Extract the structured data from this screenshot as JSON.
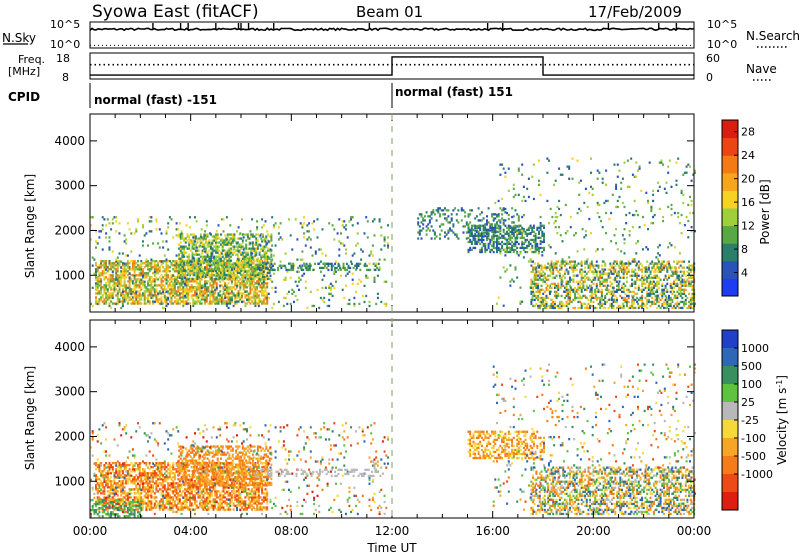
{
  "header": {
    "station": "Syowa East (fitACF)",
    "beam": "Beam 01",
    "date": "17/Feb/2009"
  },
  "noise_panel": {
    "left_label": "N.Sky",
    "right_label": "N.Search",
    "left_ticks": [
      "10^5",
      "10^0"
    ],
    "right_ticks": [
      "10^5",
      "10^0"
    ],
    "sky_level": 0.72,
    "search_level": 0.1,
    "spike_times_h": [
      2.5,
      3.6,
      3.9,
      5.0,
      5.9,
      6.0,
      6.3,
      7.3,
      11.1,
      15.8,
      16.4,
      20.6,
      22.6,
      23.3
    ]
  },
  "freq_panel": {
    "left_label": "Freq.",
    "left_unit": "[MHz]",
    "right_label": "Nave",
    "left_ticks": [
      "18",
      "8"
    ],
    "right_ticks": [
      "60",
      "0"
    ],
    "steps": [
      {
        "from_h": 0,
        "to_h": 12,
        "level": 0.15
      },
      {
        "from_h": 12,
        "to_h": 18,
        "level": 0.85
      },
      {
        "from_h": 18,
        "to_h": 24,
        "level": 0.15
      }
    ],
    "dots_level": 0.55
  },
  "cpid": {
    "label": "CPID",
    "segments": [
      {
        "text": "normal (fast) -151",
        "from_h": 0
      },
      {
        "text": "normal (fast) 151",
        "from_h": 12
      }
    ]
  },
  "chart_data": [
    {
      "type": "heatmap",
      "name": "power",
      "ylabel": "Slant Range [km]",
      "xlim": [
        0,
        24
      ],
      "ylim": [
        180,
        4600
      ],
      "yticks": [
        1000,
        2000,
        3000,
        4000
      ],
      "colorbar": {
        "label": "Power [dB]",
        "ticks": [
          4,
          8,
          12,
          16,
          20,
          24,
          28
        ],
        "range": [
          0,
          30
        ],
        "colors": [
          "#1e3cf0",
          "#2a52b8",
          "#2b7f6a",
          "#58a845",
          "#a0cf3c",
          "#f6d222",
          "#f7a51e",
          "#f47a16",
          "#ea4512",
          "#d81e10"
        ]
      },
      "echo_regions": [
        {
          "h0": 0.2,
          "h1": 7.0,
          "r0": 350,
          "r1": 1300,
          "v0": 8,
          "v1": 24,
          "density": 0.65
        },
        {
          "h0": 3.5,
          "h1": 7.2,
          "r0": 900,
          "r1": 1900,
          "v0": 6,
          "v1": 18,
          "density": 0.55
        },
        {
          "h0": 0.0,
          "h1": 11.8,
          "r0": 250,
          "r1": 2300,
          "v0": 3,
          "v1": 18,
          "density": 0.08
        },
        {
          "h0": 6.5,
          "h1": 11.5,
          "r0": 1100,
          "r1": 1250,
          "v0": 4,
          "v1": 12,
          "density": 0.35
        },
        {
          "h0": 13.0,
          "h1": 17.0,
          "r0": 1800,
          "r1": 2500,
          "v0": 4,
          "v1": 12,
          "density": 0.25
        },
        {
          "h0": 15.0,
          "h1": 18.0,
          "r0": 1500,
          "r1": 2100,
          "v0": 4,
          "v1": 12,
          "density": 0.5
        },
        {
          "h0": 17.5,
          "h1": 24.0,
          "r0": 250,
          "r1": 1300,
          "v0": 4,
          "v1": 22,
          "density": 0.45
        },
        {
          "h0": 16.0,
          "h1": 24.0,
          "r0": 300,
          "r1": 3600,
          "v0": 4,
          "v1": 16,
          "density": 0.05
        }
      ]
    },
    {
      "type": "heatmap",
      "name": "velocity",
      "ylabel": "Slant Range [km]",
      "xlabel": "Time UT",
      "xlim": [
        0,
        24
      ],
      "ylim": [
        180,
        4600
      ],
      "yticks": [
        1000,
        2000,
        3000,
        4000
      ],
      "xticks": [
        "00:00",
        "04:00",
        "08:00",
        "12:00",
        "16:00",
        "20:00",
        "00:00"
      ],
      "colorbar": {
        "label": "Velocity [m s^-1]",
        "ticks": [
          "1000",
          "500",
          "100",
          "25",
          "-25",
          "-100",
          "-500",
          "-1000"
        ],
        "colors": [
          "#2140c8",
          "#2f67b8",
          "#3a8f5e",
          "#5ec33e",
          "#b8b8b8",
          "#f6d83a",
          "#f6a624",
          "#f47c1a",
          "#ec4a16",
          "#dd1f12"
        ]
      },
      "echo_regions": [
        {
          "h0": 0.2,
          "h1": 7.0,
          "r0": 350,
          "r1": 1400,
          "c0": 5,
          "c1": 8,
          "density": 0.6
        },
        {
          "h0": 3.5,
          "h1": 7.2,
          "r0": 900,
          "r1": 1800,
          "c0": 6,
          "c1": 7,
          "density": 0.45
        },
        {
          "h0": 0.0,
          "h1": 2.0,
          "r0": 200,
          "r1": 600,
          "c0": 2,
          "c1": 3,
          "density": 0.45
        },
        {
          "h0": 0.0,
          "h1": 11.8,
          "r0": 250,
          "r1": 2300,
          "c0": 1,
          "c1": 9,
          "density": 0.07
        },
        {
          "h0": 6.5,
          "h1": 11.5,
          "r0": 1100,
          "r1": 1250,
          "c0": 4,
          "c1": 4,
          "density": 0.3
        },
        {
          "h0": 15.0,
          "h1": 18.0,
          "r0": 1500,
          "r1": 2100,
          "c0": 5,
          "c1": 7,
          "density": 0.45
        },
        {
          "h0": 17.5,
          "h1": 24.0,
          "r0": 250,
          "r1": 1300,
          "c0": 1,
          "c1": 7,
          "density": 0.45
        },
        {
          "h0": 16.0,
          "h1": 24.0,
          "r0": 300,
          "r1": 3600,
          "c0": 1,
          "c1": 8,
          "density": 0.05
        }
      ]
    }
  ]
}
